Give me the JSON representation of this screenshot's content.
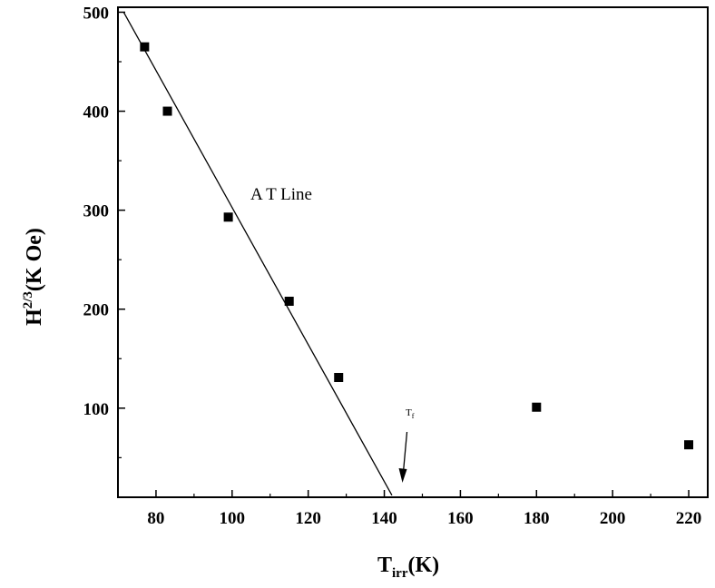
{
  "chart_data": {
    "type": "scatter",
    "xlabel": {
      "main": "T",
      "sub": "irr",
      "suffix": "(K)"
    },
    "ylabel": {
      "main": "H",
      "sup": "2/3",
      "suffix": "(K Oe)"
    },
    "xlim": [
      70,
      225
    ],
    "ylim": [
      10,
      505
    ],
    "xticks": [
      80,
      100,
      120,
      140,
      160,
      180,
      200,
      220
    ],
    "yticks": [
      100,
      200,
      300,
      400,
      500
    ],
    "grid": false,
    "series": [
      {
        "values_x": [
          77,
          83,
          99,
          115,
          128,
          180,
          220
        ],
        "values_y": [
          465,
          400,
          293,
          208,
          131,
          101,
          63
        ]
      }
    ],
    "fit_line": {
      "x": [
        71.5,
        142
      ],
      "y": [
        500,
        12
      ]
    },
    "annotations": {
      "line_label": "A T Line",
      "arrow_label": "T",
      "arrow_label_sub": "f",
      "arrow_at_x": 145
    }
  }
}
